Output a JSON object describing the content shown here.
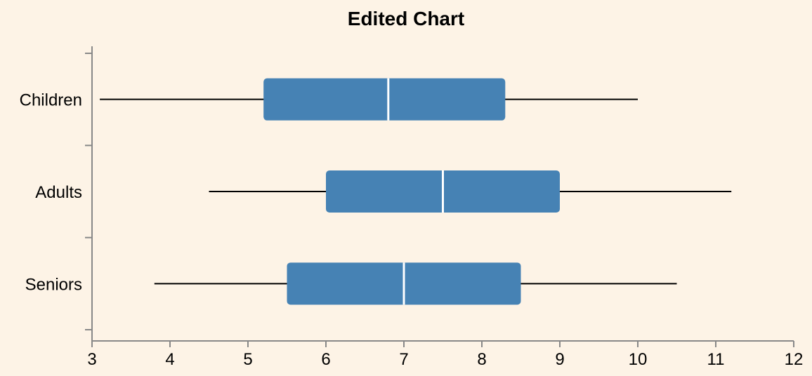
{
  "chart_data": {
    "type": "boxplot",
    "orientation": "horizontal",
    "title": "Edited Chart",
    "xlabel": "",
    "ylabel": "",
    "xlim": [
      3,
      12
    ],
    "x_ticks": [
      3,
      4,
      5,
      6,
      7,
      8,
      9,
      10,
      11,
      12
    ],
    "categories": [
      "Children",
      "Adults",
      "Seniors"
    ],
    "boxes": [
      {
        "category": "Children",
        "min": 3.1,
        "q1": 5.2,
        "median": 6.8,
        "q3": 8.3,
        "max": 10.0
      },
      {
        "category": "Adults",
        "min": 4.5,
        "q1": 6.0,
        "median": 7.5,
        "q3": 9.0,
        "max": 11.2
      },
      {
        "category": "Seniors",
        "min": 3.8,
        "q1": 5.5,
        "median": 7.0,
        "q3": 8.5,
        "max": 10.5
      }
    ],
    "colors": {
      "box": "#4682b4",
      "median": "#ffffff",
      "whisker": "#000000",
      "background": "#fdf3e6",
      "axis": "#888888"
    },
    "grid": false,
    "legend": "none"
  }
}
